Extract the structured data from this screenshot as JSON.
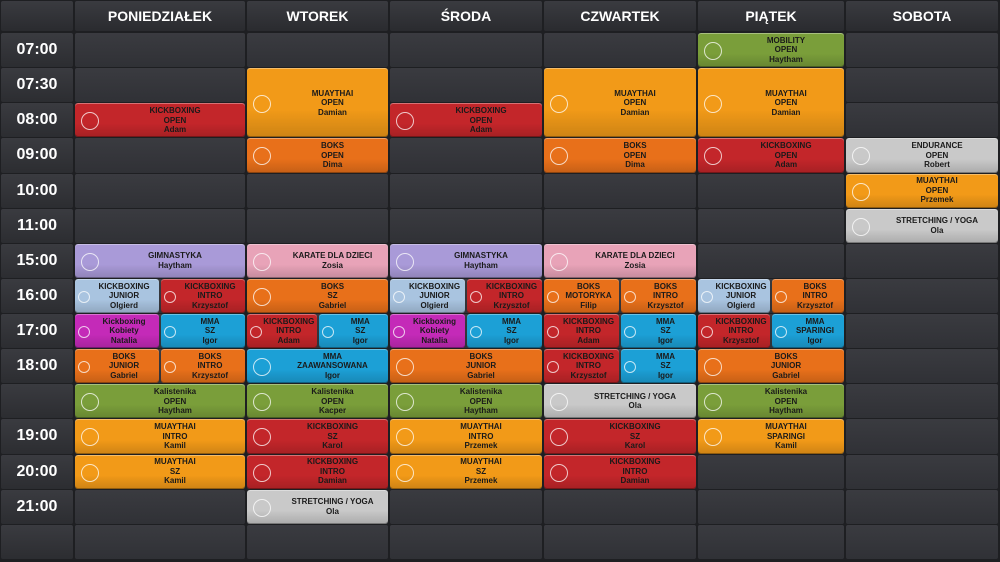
{
  "days": [
    {
      "name": "PONIEDZIAŁEK"
    },
    {
      "name": "WTOREK"
    },
    {
      "name": "ŚRODA"
    },
    {
      "name": "CZWARTEK"
    },
    {
      "name": "PIĄTEK"
    },
    {
      "name": "SOBOTA"
    }
  ],
  "times": [
    "07:00",
    "07:30",
    "08:00",
    "09:00",
    "10:00",
    "11:00",
    "15:00",
    "16:00",
    "17:00",
    "18:00",
    null,
    "19:00",
    "20:00",
    "21:00",
    null
  ],
  "events": [
    {
      "day": 0,
      "row": 2,
      "span": 1,
      "half": "full",
      "color": "#c3262a",
      "lines": [
        "KICKBOXING",
        "OPEN",
        "Adam"
      ]
    },
    {
      "day": 0,
      "row": 6,
      "span": 1,
      "half": "full",
      "color": "#a99ad8",
      "lines": [
        "GIMNASTYKA",
        "Haytham"
      ]
    },
    {
      "day": 0,
      "row": 7,
      "span": 1,
      "half": "left",
      "color": "#a9c4e0",
      "lines": [
        "KICKBOXING",
        "JUNIOR",
        "Olgierd"
      ]
    },
    {
      "day": 0,
      "row": 7,
      "span": 1,
      "half": "right",
      "color": "#c3262a",
      "lines": [
        "KICKBOXING",
        "INTRO",
        "Krzysztof"
      ]
    },
    {
      "day": 0,
      "row": 8,
      "span": 1,
      "half": "left",
      "color": "#c42ab8",
      "lines": [
        "Kickboxing",
        "Kobiety",
        "Natalia"
      ]
    },
    {
      "day": 0,
      "row": 8,
      "span": 1,
      "half": "right",
      "color": "#1ca0d6",
      "lines": [
        "MMA",
        "SZ",
        "Igor"
      ]
    },
    {
      "day": 0,
      "row": 9,
      "span": 1,
      "half": "left",
      "color": "#e8701a",
      "lines": [
        "BOKS",
        "JUNIOR",
        "Gabriel"
      ]
    },
    {
      "day": 0,
      "row": 9,
      "span": 1,
      "half": "right",
      "color": "#e8701a",
      "lines": [
        "BOKS",
        "INTRO",
        "Krzysztof"
      ]
    },
    {
      "day": 0,
      "row": 10,
      "span": 1,
      "half": "full",
      "color": "#7a9e3a",
      "lines": [
        "Kalistenika",
        "OPEN",
        "Haytham"
      ]
    },
    {
      "day": 0,
      "row": 11,
      "span": 1,
      "half": "full",
      "color": "#f29a18",
      "lines": [
        "MUAYTHAI",
        "INTRO",
        "Kamil"
      ]
    },
    {
      "day": 0,
      "row": 12,
      "span": 1,
      "half": "full",
      "color": "#f29a18",
      "lines": [
        "MUAYTHAI",
        "SZ",
        "Kamil"
      ]
    },
    {
      "day": 1,
      "row": 1,
      "span": 2,
      "half": "full",
      "color": "#f29a18",
      "lines": [
        "MUAYTHAI",
        "OPEN",
        "Damian"
      ]
    },
    {
      "day": 1,
      "row": 3,
      "span": 1,
      "half": "full",
      "color": "#e8701a",
      "lines": [
        "BOKS",
        "OPEN",
        "Dima"
      ]
    },
    {
      "day": 1,
      "row": 6,
      "span": 1,
      "half": "full",
      "color": "#e8a3b8",
      "lines": [
        "KARATE DLA DZIECI",
        "Zosia"
      ]
    },
    {
      "day": 1,
      "row": 7,
      "span": 1,
      "half": "full",
      "color": "#e8701a",
      "lines": [
        "BOKS",
        "SZ",
        "Gabriel"
      ]
    },
    {
      "day": 1,
      "row": 8,
      "span": 1,
      "half": "left",
      "color": "#c3262a",
      "lines": [
        "KICKBOXING",
        "INTRO",
        "Adam"
      ]
    },
    {
      "day": 1,
      "row": 8,
      "span": 1,
      "half": "right",
      "color": "#1ca0d6",
      "lines": [
        "MMA",
        "SZ",
        "Igor"
      ]
    },
    {
      "day": 1,
      "row": 9,
      "span": 1,
      "half": "full",
      "color": "#1ca0d6",
      "lines": [
        "MMA",
        "ZAAWANSOWANA",
        "Igor"
      ]
    },
    {
      "day": 1,
      "row": 10,
      "span": 1,
      "half": "full",
      "color": "#7a9e3a",
      "lines": [
        "Kalistenika",
        "OPEN",
        "Kacper"
      ]
    },
    {
      "day": 1,
      "row": 11,
      "span": 1,
      "half": "full",
      "color": "#c3262a",
      "lines": [
        "KICKBOXING",
        "SZ",
        "Karol"
      ]
    },
    {
      "day": 1,
      "row": 12,
      "span": 1,
      "half": "full",
      "color": "#c3262a",
      "lines": [
        "KICKBOXING",
        "INTRO",
        "Damian"
      ]
    },
    {
      "day": 1,
      "row": 13,
      "span": 1,
      "half": "full",
      "color": "#c9c9c9",
      "lines": [
        "STRETCHING / YOGA",
        "Ola"
      ]
    },
    {
      "day": 2,
      "row": 2,
      "span": 1,
      "half": "full",
      "color": "#c3262a",
      "lines": [
        "KICKBOXING",
        "OPEN",
        "Adam"
      ]
    },
    {
      "day": 2,
      "row": 6,
      "span": 1,
      "half": "full",
      "color": "#a99ad8",
      "lines": [
        "GIMNASTYKA",
        "Haytham"
      ]
    },
    {
      "day": 2,
      "row": 7,
      "span": 1,
      "half": "left",
      "color": "#a9c4e0",
      "lines": [
        "KICKBOXING",
        "JUNIOR",
        "Olgierd"
      ]
    },
    {
      "day": 2,
      "row": 7,
      "span": 1,
      "half": "right",
      "color": "#c3262a",
      "lines": [
        "KICKBOXING",
        "INTRO",
        "Krzysztof"
      ]
    },
    {
      "day": 2,
      "row": 8,
      "span": 1,
      "half": "left",
      "color": "#c42ab8",
      "lines": [
        "Kickboxing",
        "Kobiety",
        "Natalia"
      ]
    },
    {
      "day": 2,
      "row": 8,
      "span": 1,
      "half": "right",
      "color": "#1ca0d6",
      "lines": [
        "MMA",
        "SZ",
        "Igor"
      ]
    },
    {
      "day": 2,
      "row": 9,
      "span": 1,
      "half": "full",
      "color": "#e8701a",
      "lines": [
        "BOKS",
        "JUNIOR",
        "Gabriel"
      ]
    },
    {
      "day": 2,
      "row": 10,
      "span": 1,
      "half": "full",
      "color": "#7a9e3a",
      "lines": [
        "Kalistenika",
        "OPEN",
        "Haytham"
      ]
    },
    {
      "day": 2,
      "row": 11,
      "span": 1,
      "half": "full",
      "color": "#f29a18",
      "lines": [
        "MUAYTHAI",
        "INTRO",
        "Przemek"
      ]
    },
    {
      "day": 2,
      "row": 12,
      "span": 1,
      "half": "full",
      "color": "#f29a18",
      "lines": [
        "MUAYTHAI",
        "SZ",
        "Przemek"
      ]
    },
    {
      "day": 3,
      "row": 1,
      "span": 2,
      "half": "full",
      "color": "#f29a18",
      "lines": [
        "MUAYTHAI",
        "OPEN",
        "Damian"
      ]
    },
    {
      "day": 3,
      "row": 3,
      "span": 1,
      "half": "full",
      "color": "#e8701a",
      "lines": [
        "BOKS",
        "OPEN",
        "Dima"
      ]
    },
    {
      "day": 3,
      "row": 6,
      "span": 1,
      "half": "full",
      "color": "#e8a3b8",
      "lines": [
        "KARATE DLA DZIECI",
        "Zosia"
      ]
    },
    {
      "day": 3,
      "row": 7,
      "span": 1,
      "half": "left",
      "color": "#e8701a",
      "lines": [
        "BOKS",
        "MOTORYKA",
        "Filip"
      ]
    },
    {
      "day": 3,
      "row": 7,
      "span": 1,
      "half": "right",
      "color": "#e8701a",
      "lines": [
        "BOKS",
        "INTRO",
        "Krzysztof"
      ]
    },
    {
      "day": 3,
      "row": 8,
      "span": 1,
      "half": "left",
      "color": "#c3262a",
      "lines": [
        "KICKBOXING",
        "INTRO",
        "Adam"
      ]
    },
    {
      "day": 3,
      "row": 8,
      "span": 1,
      "half": "right",
      "color": "#1ca0d6",
      "lines": [
        "MMA",
        "SZ",
        "Igor"
      ]
    },
    {
      "day": 3,
      "row": 9,
      "span": 1,
      "half": "left",
      "color": "#c3262a",
      "lines": [
        "KICKBOXING",
        "INTRO",
        "Krzysztof"
      ]
    },
    {
      "day": 3,
      "row": 9,
      "span": 1,
      "half": "right",
      "color": "#1ca0d6",
      "lines": [
        "MMA",
        "SZ",
        "Igor"
      ]
    },
    {
      "day": 3,
      "row": 10,
      "span": 1,
      "half": "full",
      "color": "#c9c9c9",
      "lines": [
        "STRETCHING / YOGA",
        "Ola"
      ]
    },
    {
      "day": 3,
      "row": 11,
      "span": 1,
      "half": "full",
      "color": "#c3262a",
      "lines": [
        "KICKBOXING",
        "SZ",
        "Karol"
      ]
    },
    {
      "day": 3,
      "row": 12,
      "span": 1,
      "half": "full",
      "color": "#c3262a",
      "lines": [
        "KICKBOXING",
        "INTRO",
        "Damian"
      ]
    },
    {
      "day": 4,
      "row": 0,
      "span": 1,
      "half": "full",
      "color": "#7a9e3a",
      "lines": [
        "MOBILITY",
        "OPEN",
        "Haytham"
      ]
    },
    {
      "day": 4,
      "row": 1,
      "span": 2,
      "half": "full",
      "color": "#f29a18",
      "lines": [
        "MUAYTHAI",
        "OPEN",
        "Damian"
      ]
    },
    {
      "day": 4,
      "row": 3,
      "span": 1,
      "half": "full",
      "color": "#c3262a",
      "lines": [
        "KICKBOXING",
        "OPEN",
        "Adam"
      ]
    },
    {
      "day": 4,
      "row": 7,
      "span": 1,
      "half": "left",
      "color": "#a9c4e0",
      "lines": [
        "KICKBOXING",
        "JUNIOR",
        "Olgierd"
      ]
    },
    {
      "day": 4,
      "row": 7,
      "span": 1,
      "half": "right",
      "color": "#e8701a",
      "lines": [
        "BOKS",
        "INTRO",
        "Krzysztof"
      ]
    },
    {
      "day": 4,
      "row": 8,
      "span": 1,
      "half": "left",
      "color": "#c3262a",
      "lines": [
        "KICKBOXING",
        "INTRO",
        "Krzysztof"
      ]
    },
    {
      "day": 4,
      "row": 8,
      "span": 1,
      "half": "right",
      "color": "#1ca0d6",
      "lines": [
        "MMA",
        "SPARINGI",
        "Igor"
      ]
    },
    {
      "day": 4,
      "row": 9,
      "span": 1,
      "half": "full",
      "color": "#e8701a",
      "lines": [
        "BOKS",
        "JUNIOR",
        "Gabriel"
      ]
    },
    {
      "day": 4,
      "row": 10,
      "span": 1,
      "half": "full",
      "color": "#7a9e3a",
      "lines": [
        "Kalistenika",
        "OPEN",
        "Haytham"
      ]
    },
    {
      "day": 4,
      "row": 11,
      "span": 1,
      "half": "full",
      "color": "#f29a18",
      "lines": [
        "MUAYTHAI",
        "SPARINGI",
        "Kamil"
      ]
    },
    {
      "day": 5,
      "row": 3,
      "span": 1,
      "half": "full",
      "color": "#c9c9c9",
      "lines": [
        "ENDURANCE",
        "OPEN",
        "Robert"
      ]
    },
    {
      "day": 5,
      "row": 4,
      "span": 1,
      "half": "full",
      "color": "#f29a18",
      "lines": [
        "MUAYTHAI",
        "OPEN",
        "Przemek"
      ]
    },
    {
      "day": 5,
      "row": 5,
      "span": 1,
      "half": "full",
      "color": "#c9c9c9",
      "lines": [
        "STRETCHING / YOGA",
        "Ola"
      ]
    }
  ]
}
